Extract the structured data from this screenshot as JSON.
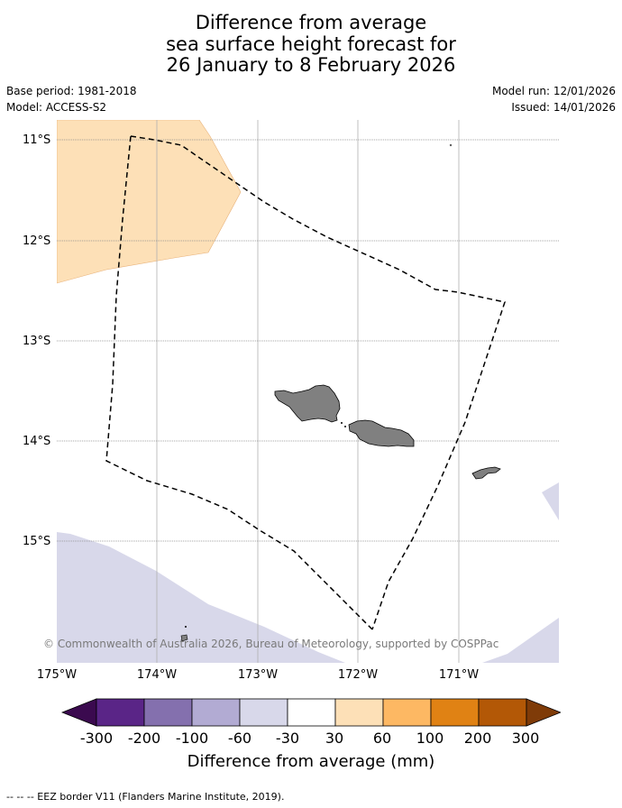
{
  "title": {
    "line1": "Difference from average",
    "line2": "sea surface height forecast for",
    "line3": "26 January to 8 February 2026"
  },
  "meta": {
    "base_period": "Base period: 1981-2018",
    "model": "Model: ACCESS-S2",
    "model_run": "Model run: 12/01/2026",
    "issued": "Issued: 14/01/2026"
  },
  "map": {
    "lat_labels": [
      "11°S",
      "12°S",
      "13°S",
      "14°S",
      "15°S"
    ],
    "lon_labels": [
      "175°W",
      "174°W",
      "173°W",
      "172°W",
      "171°W"
    ],
    "credit": "© Commonwealth of Australia 2026, Bureau of Meteorology, supported by COSPPac",
    "colors": {
      "positive_30_60": "#fde0b7",
      "negative_60_30": "#d8d8ea",
      "land": "#808080",
      "grid": "#aaaaaa"
    }
  },
  "colorbar": {
    "ticks": [
      "-300",
      "-200",
      "-100",
      "-60",
      "-30",
      "30",
      "60",
      "100",
      "200",
      "300"
    ],
    "colors": [
      "#3b0a4f",
      "#5a2587",
      "#8470ae",
      "#b2abd3",
      "#d8d8ea",
      "#ffffff",
      "#fde0b7",
      "#fdb863",
      "#e08214",
      "#b35806",
      "#7f3b08"
    ],
    "label": "Difference from average (mm)"
  },
  "footer": "--  --  -- EEZ border V11 (Flanders Marine Institute, 2019)."
}
